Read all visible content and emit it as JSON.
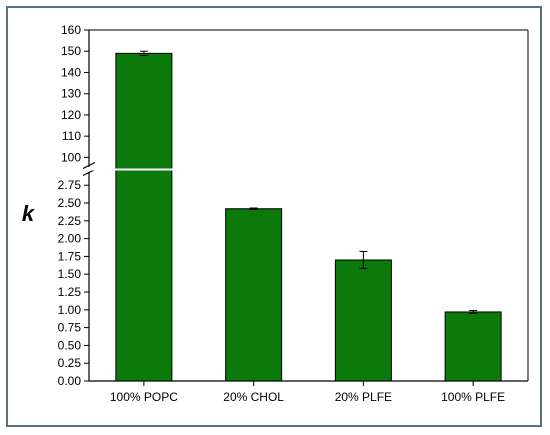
{
  "chart_data": {
    "type": "bar",
    "categories": [
      "100% POPC",
      "20% CHOL",
      "20% PLFE",
      "100% PLFE"
    ],
    "values": [
      149,
      2.42,
      1.7,
      0.97
    ],
    "errors": [
      1.0,
      0.01,
      0.12,
      0.02
    ],
    "ylabel": "k",
    "axis_break": true,
    "segments": [
      {
        "ylim": [
          95,
          160
        ],
        "ticks": [
          100,
          110,
          120,
          130,
          140,
          150,
          160
        ]
      },
      {
        "ylim": [
          0,
          2.95
        ],
        "ticks": [
          "0.00",
          "0.25",
          "0.50",
          "0.75",
          "1.00",
          "1.25",
          "1.50",
          "1.75",
          "2.00",
          "2.25",
          "2.50",
          "2.75"
        ]
      }
    ],
    "bar_color": "#0b7a0b",
    "grid": false,
    "legend": "none"
  }
}
